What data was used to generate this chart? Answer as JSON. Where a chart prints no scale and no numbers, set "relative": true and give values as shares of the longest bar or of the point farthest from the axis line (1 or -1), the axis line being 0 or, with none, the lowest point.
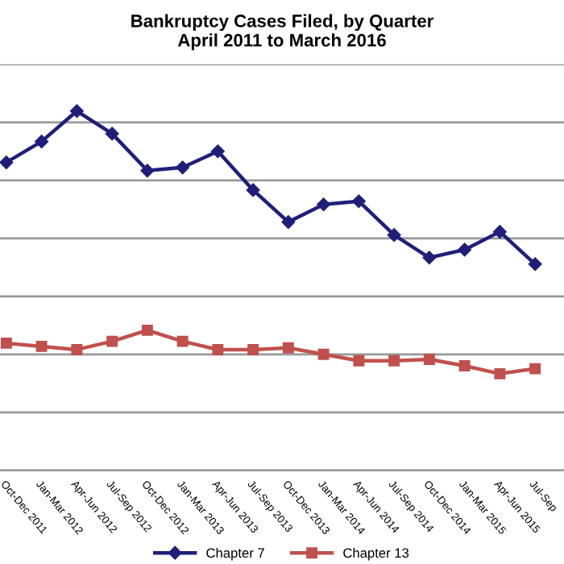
{
  "chart_data": {
    "type": "line",
    "title": "Bankruptcy Cases Filed, by Quarter\nApril 2011 to March 2016",
    "relative": true,
    "grid": "y",
    "legend": "bottom",
    "marker": "diamond",
    "line_style": "solid",
    "categories": [
      "Oct-Dec 2011",
      "Jan-Mar 2012",
      "Apr-Jun 2012",
      "Jul-Sep 2012",
      "Oct-Dec 2012",
      "Jan-Mar 2013",
      "Apr-Jun 2013",
      "Jul-Sep 2013",
      "Oct-Dec 2013",
      "Jan-Mar 2014",
      "Apr-Jun 2014",
      "Jul-Sep 2014",
      "Oct-Dec 2014",
      "Jan-Mar 2015",
      "Apr-Jun 2015",
      "Jul-Sep"
    ],
    "series": [
      {
        "name": "Chapter 7",
        "color": "#1f1f7a",
        "values": [
          0.857,
          0.915,
          1,
          0.937,
          0.834,
          0.843,
          0.888,
          0.78,
          0.691,
          0.74,
          0.749,
          0.655,
          0.592,
          0.614,
          0.664,
          0.574
        ]
      },
      {
        "name": "Chapter 13",
        "color": "#c0504d",
        "marker": "square",
        "values": [
          0.354,
          0.345,
          0.336,
          0.359,
          0.39,
          0.359,
          0.336,
          0.336,
          0.341,
          0.323,
          0.305,
          0.305,
          0.309,
          0.291,
          0.269,
          0.283
        ]
      }
    ]
  }
}
